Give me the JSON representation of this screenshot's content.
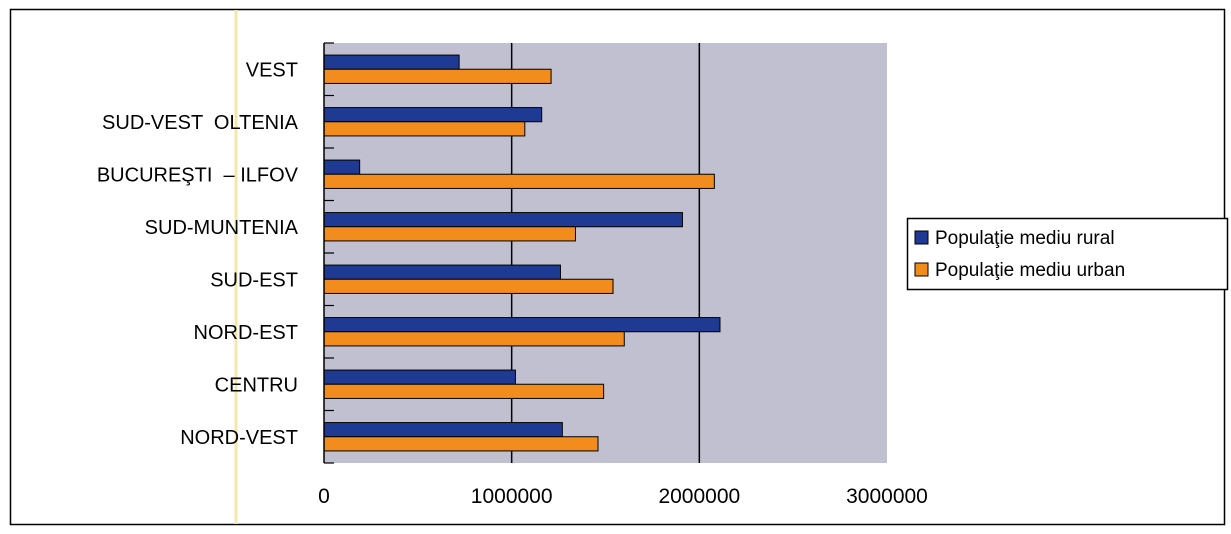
{
  "chart_data": {
    "type": "bar",
    "orientation": "horizontal",
    "categories": [
      "VEST",
      "SUD-VEST  OLTENIA",
      "BUCUREŞTI  – ILFOV",
      "SUD-MUNTENIA",
      "SUD-EST",
      "NORD-EST",
      "CENTRU",
      "NORD-VEST"
    ],
    "series": [
      {
        "name": "Populaţie mediu rural",
        "color": "#1f3a93",
        "values": [
          720000,
          1160000,
          190000,
          1910000,
          1260000,
          2110000,
          1020000,
          1270000
        ]
      },
      {
        "name": "Populaţie mediu urban",
        "color": "#f28c1c",
        "values": [
          1210000,
          1070000,
          2080000,
          1340000,
          1540000,
          1600000,
          1490000,
          1460000
        ]
      }
    ],
    "xlim": [
      0,
      3000000
    ],
    "xticks": [
      "0",
      "1000000",
      "2000000",
      "3000000"
    ],
    "grid": true,
    "plot_background": "#c0c0d0",
    "legend_position": "right"
  }
}
